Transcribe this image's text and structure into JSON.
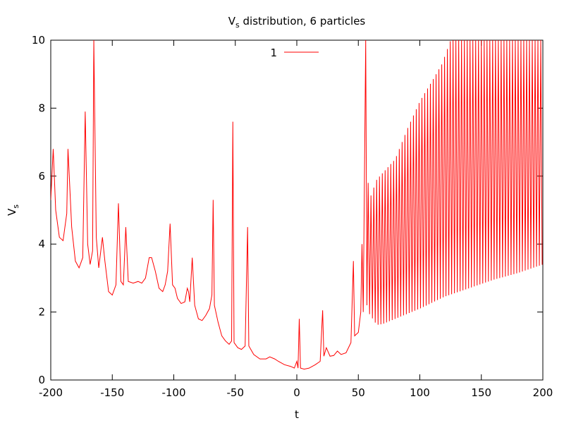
{
  "chart_data": {
    "type": "line",
    "title": {
      "main": "V",
      "sub": "s",
      "rest": " distribution, 6 particles"
    },
    "xlabel": "t",
    "ylabel": {
      "main": "V",
      "sub": "s"
    },
    "xlim": [
      -200,
      200
    ],
    "ylim": [
      0,
      10
    ],
    "xticks": [
      -200,
      -150,
      -100,
      -50,
      0,
      50,
      100,
      150,
      200
    ],
    "yticks": [
      0,
      2,
      4,
      6,
      8,
      10
    ],
    "grid": false,
    "legend": {
      "position": "top-center",
      "entries": [
        {
          "name": "1",
          "color": "#ff0000"
        }
      ]
    },
    "series": [
      {
        "name": "1",
        "color": "#ff0000",
        "baseline": [
          [
            -200,
            5.3
          ],
          [
            -198,
            6.8
          ],
          [
            -196,
            5.0
          ],
          [
            -193,
            4.2
          ],
          [
            -190,
            4.1
          ],
          [
            -187,
            4.9
          ],
          [
            -186,
            6.8
          ],
          [
            -183,
            4.5
          ],
          [
            -180,
            3.5
          ],
          [
            -177,
            3.3
          ],
          [
            -174,
            3.6
          ],
          [
            -172,
            7.9
          ],
          [
            -170,
            4.0
          ],
          [
            -168,
            3.4
          ],
          [
            -166,
            3.8
          ],
          [
            -165,
            10.0
          ],
          [
            -163,
            4.2
          ],
          [
            -161,
            3.3
          ],
          [
            -158,
            4.2
          ],
          [
            -156,
            3.5
          ],
          [
            -153,
            2.6
          ],
          [
            -150,
            2.5
          ],
          [
            -147,
            2.8
          ],
          [
            -145,
            5.2
          ],
          [
            -143,
            2.9
          ],
          [
            -141,
            2.8
          ],
          [
            -139,
            4.5
          ],
          [
            -137,
            2.9
          ],
          [
            -133,
            2.85
          ],
          [
            -129,
            2.9
          ],
          [
            -126,
            2.85
          ],
          [
            -123,
            3.0
          ],
          [
            -120,
            3.6
          ],
          [
            -118,
            3.6
          ],
          [
            -115,
            3.2
          ],
          [
            -112,
            2.7
          ],
          [
            -109,
            2.6
          ],
          [
            -107,
            2.8
          ],
          [
            -105,
            3.2
          ],
          [
            -103,
            4.6
          ],
          [
            -101,
            2.8
          ],
          [
            -99,
            2.7
          ],
          [
            -97,
            2.4
          ],
          [
            -94,
            2.25
          ],
          [
            -91,
            2.3
          ],
          [
            -89,
            2.7
          ],
          [
            -88,
            2.6
          ],
          [
            -87,
            2.3
          ],
          [
            -85,
            3.6
          ],
          [
            -83,
            2.2
          ],
          [
            -80,
            1.8
          ],
          [
            -77,
            1.75
          ],
          [
            -74,
            1.9
          ],
          [
            -71,
            2.1
          ],
          [
            -69,
            2.5
          ],
          [
            -68,
            5.3
          ],
          [
            -67,
            2.2
          ],
          [
            -64,
            1.7
          ],
          [
            -61,
            1.3
          ],
          [
            -58,
            1.15
          ],
          [
            -55,
            1.05
          ],
          [
            -53,
            1.15
          ],
          [
            -52,
            7.6
          ],
          [
            -51,
            1.1
          ],
          [
            -48,
            0.95
          ],
          [
            -45,
            0.9
          ],
          [
            -42,
            1.0
          ],
          [
            -40,
            4.5
          ],
          [
            -39,
            1.0
          ],
          [
            -35,
            0.75
          ],
          [
            -30,
            0.62
          ],
          [
            -25,
            0.62
          ],
          [
            -22,
            0.68
          ],
          [
            -18,
            0.62
          ],
          [
            -15,
            0.55
          ],
          [
            -10,
            0.45
          ],
          [
            -5,
            0.4
          ],
          [
            -2,
            0.35
          ],
          [
            0,
            0.55
          ],
          [
            1,
            0.35
          ],
          [
            2,
            1.8
          ],
          [
            3,
            0.35
          ],
          [
            6,
            0.32
          ],
          [
            10,
            0.35
          ],
          [
            15,
            0.45
          ],
          [
            19,
            0.55
          ],
          [
            21,
            2.05
          ],
          [
            22,
            0.7
          ],
          [
            24,
            0.95
          ],
          [
            27,
            0.7
          ],
          [
            30,
            0.72
          ],
          [
            33,
            0.85
          ],
          [
            36,
            0.75
          ],
          [
            40,
            0.8
          ],
          [
            44,
            1.1
          ],
          [
            46,
            3.5
          ],
          [
            47,
            1.3
          ],
          [
            50,
            1.4
          ],
          [
            52,
            2.0
          ],
          [
            53,
            4.0
          ],
          [
            54,
            2.0
          ],
          [
            56,
            10.0
          ],
          [
            57,
            2.2
          ],
          [
            58,
            5.8
          ]
        ],
        "oscillation": {
          "x_start": 58,
          "x_end": 200,
          "period": 2.3,
          "peaks": [
            [
              58,
              5.8
            ],
            [
              60,
              5.4
            ],
            [
              65,
              5.9
            ],
            [
              70,
              6.1
            ],
            [
              80,
              6.5
            ],
            [
              90,
              7.4
            ],
            [
              100,
              8.2
            ],
            [
              110,
              8.8
            ],
            [
              118,
              9.3
            ],
            [
              125,
              10.0
            ],
            [
              200,
              10.0
            ]
          ],
          "troughs": [
            [
              58,
              2.0
            ],
            [
              65,
              1.62
            ],
            [
              70,
              1.65
            ],
            [
              80,
              1.8
            ],
            [
              100,
              2.1
            ],
            [
              120,
              2.45
            ],
            [
              140,
              2.7
            ],
            [
              160,
              2.95
            ],
            [
              180,
              3.15
            ],
            [
              200,
              3.4
            ]
          ]
        }
      }
    ]
  }
}
